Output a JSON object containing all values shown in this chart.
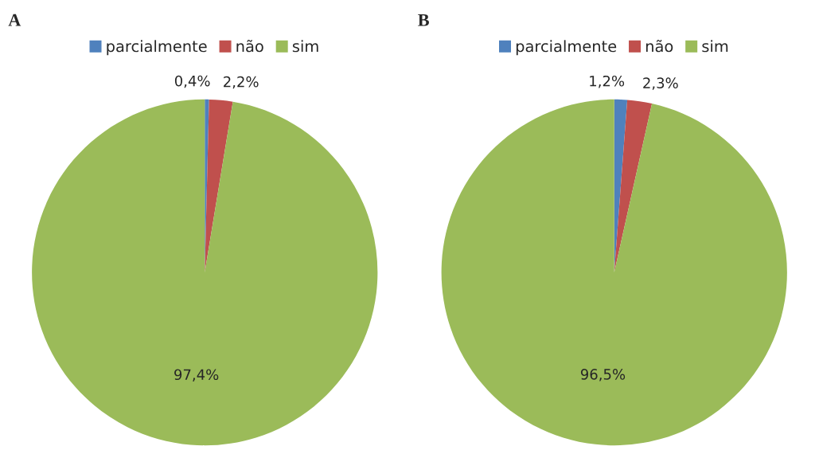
{
  "chart_data": [
    {
      "type": "pie",
      "title": "A",
      "categories": [
        "parcialmente",
        "não",
        "sim"
      ],
      "values": [
        0.4,
        2.2,
        97.4
      ],
      "colors": [
        "#4f81bd",
        "#c0504d",
        "#9bbb59"
      ],
      "value_labels": [
        "0,4%",
        "2,2%",
        "97,4%"
      ],
      "legend": "top"
    },
    {
      "type": "pie",
      "title": "B",
      "categories": [
        "parcialmente",
        "não",
        "sim"
      ],
      "values": [
        1.2,
        2.3,
        96.5
      ],
      "colors": [
        "#4f81bd",
        "#c0504d",
        "#9bbb59"
      ],
      "value_labels": [
        "1,2%",
        "2,3%",
        "96,5%"
      ],
      "legend": "top"
    }
  ]
}
